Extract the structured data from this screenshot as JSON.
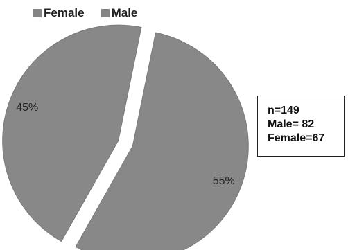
{
  "chart_data": {
    "type": "pie",
    "categories": [
      "Female",
      "Male"
    ],
    "values": [
      45,
      55
    ],
    "value_labels": [
      "45%",
      "55%"
    ],
    "legend": [
      "Female",
      "Male"
    ],
    "legend_position": "top-left",
    "exploded": true
  },
  "annotation": {
    "lines": [
      "n=149",
      "Male= 82",
      "Female=67"
    ]
  },
  "colors": {
    "slice": "#888888",
    "slice_stroke": "#7a7a7a",
    "legend_swatch": "#858585"
  }
}
